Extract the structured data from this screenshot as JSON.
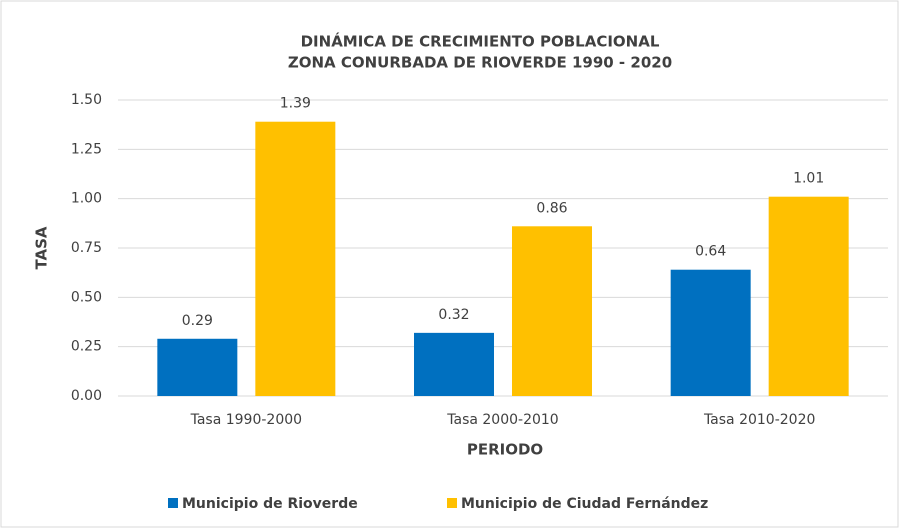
{
  "chart_data": {
    "type": "bar",
    "title": "DINÁMICA DE CRECIMIENTO POBLACIONAL",
    "subtitle": "ZONA CONURBADA DE RIOVERDE 1990 - 2020",
    "x_label": "PERIODO",
    "y_label": "TASA",
    "categories": [
      "Tasa 1990-2000",
      "Tasa 2000-2010",
      "Tasa 2010-2020"
    ],
    "series": [
      {
        "name": "Municipio de Rioverde",
        "color": "#0070c0",
        "values": [
          0.29,
          0.32,
          0.64
        ]
      },
      {
        "name": "Municipio de Ciudad Fernández",
        "color": "#ffc000",
        "values": [
          1.39,
          0.86,
          1.01
        ]
      }
    ],
    "ylim": [
      0,
      1.5
    ],
    "yticks": [
      {
        "value": 0,
        "label": "0.00"
      },
      {
        "value": 0.25,
        "label": "0.25"
      },
      {
        "value": 0.5,
        "label": "0.50"
      },
      {
        "value": 0.75,
        "label": "0.75"
      },
      {
        "value": 1,
        "label": "1.00"
      },
      {
        "value": 1.25,
        "label": "1.25"
      },
      {
        "value": 1.5,
        "label": "1.50"
      }
    ],
    "grid": true,
    "legend": "bottom"
  }
}
